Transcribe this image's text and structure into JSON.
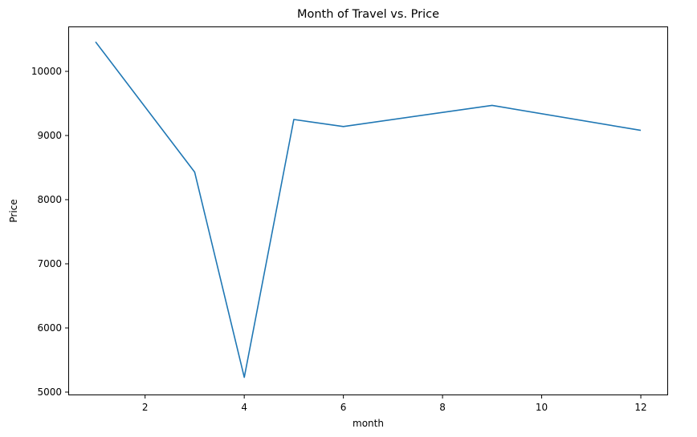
{
  "chart_data": {
    "type": "line",
    "title": "Month of Travel vs. Price",
    "xlabel": "month",
    "ylabel": "Price",
    "xlim": [
      0.45,
      12.55
    ],
    "ylim": [
      4950,
      10700
    ],
    "xticks": [
      2,
      4,
      6,
      8,
      10,
      12
    ],
    "yticks": [
      5000,
      6000,
      7000,
      8000,
      9000,
      10000
    ],
    "grid": false,
    "series": [
      {
        "color": "#1f77b4",
        "x": [
          1,
          3,
          4,
          5,
          6,
          9,
          12
        ],
        "y": [
          10460,
          8430,
          5230,
          9250,
          9140,
          9470,
          9080
        ]
      }
    ]
  }
}
